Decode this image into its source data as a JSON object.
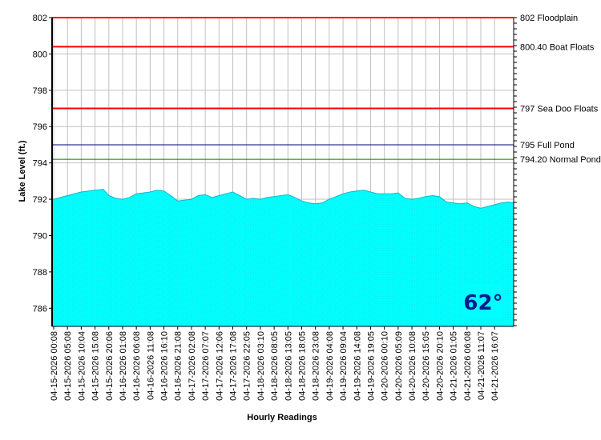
{
  "chart_data": {
    "type": "area",
    "xlabel": "Hourly Readings",
    "ylabel": "Lake Level (ft.)",
    "ylim": [
      785,
      802
    ],
    "yticks": [
      786,
      788,
      790,
      792,
      794,
      796,
      798,
      800,
      802
    ],
    "grid": true,
    "fill_color": "#00ffff",
    "x_tick_labels": [
      "04-15-2026 00:08",
      "04-15-2026 05:08",
      "04-15-2026 10:04",
      "04-15-2026 15:08",
      "04-15-2026 20:06",
      "04-16-2026 01:08",
      "04-16-2026 06:08",
      "04-16-2026 11:08",
      "04-16-2026 16:10",
      "04-16-2026 21:08",
      "04-17-2026 02:08",
      "04-17-2026 07:07",
      "04-17-2026 12:06",
      "04-17-2026 17:08",
      "04-17-2026 22:05",
      "04-18-2026 03:10",
      "04-18-2026 08:05",
      "04-18-2026 13:05",
      "04-18-2026 18:05",
      "04-18-2026 23:08",
      "04-19-2026 04:08",
      "04-19-2026 09:04",
      "04-19-2026 14:08",
      "04-19-2026 19:05",
      "04-20-2026 00:10",
      "04-20-2026 05:09",
      "04-20-2026 10:08",
      "04-20-2026 15:05",
      "04-20-2026 20:10",
      "04-21-2026 01:05",
      "04-21-2026 06:08",
      "04-21-2026 11:07",
      "04-21-2026 16:07"
    ],
    "level_points": [
      [
        0,
        792.0
      ],
      [
        1,
        792.2
      ],
      [
        2,
        792.4
      ],
      [
        3,
        792.5
      ],
      [
        3.6,
        792.55
      ],
      [
        4,
        792.2
      ],
      [
        4.5,
        792.05
      ],
      [
        5,
        792.0
      ],
      [
        5.5,
        792.1
      ],
      [
        6,
        792.3
      ],
      [
        6.5,
        792.35
      ],
      [
        7,
        792.4
      ],
      [
        7.5,
        792.5
      ],
      [
        8,
        792.45
      ],
      [
        8.5,
        792.2
      ],
      [
        9,
        791.9
      ],
      [
        9.5,
        791.95
      ],
      [
        10,
        792.0
      ],
      [
        10.5,
        792.2
      ],
      [
        11,
        792.25
      ],
      [
        11.5,
        792.1
      ],
      [
        12,
        792.2
      ],
      [
        12.5,
        792.3
      ],
      [
        13,
        792.4
      ],
      [
        13.5,
        792.2
      ],
      [
        14,
        792.0
      ],
      [
        14.5,
        792.05
      ],
      [
        15,
        792.0
      ],
      [
        15.5,
        792.1
      ],
      [
        16,
        792.15
      ],
      [
        16.5,
        792.2
      ],
      [
        17,
        792.25
      ],
      [
        17.5,
        792.1
      ],
      [
        18,
        791.9
      ],
      [
        18.5,
        791.8
      ],
      [
        19,
        791.75
      ],
      [
        19.5,
        791.8
      ],
      [
        20,
        792.0
      ],
      [
        20.5,
        792.15
      ],
      [
        21,
        792.3
      ],
      [
        21.5,
        792.4
      ],
      [
        22,
        792.45
      ],
      [
        22.5,
        792.5
      ],
      [
        23,
        792.4
      ],
      [
        23.5,
        792.3
      ],
      [
        24,
        792.3
      ],
      [
        24.5,
        792.3
      ],
      [
        25,
        792.35
      ],
      [
        25.5,
        792.05
      ],
      [
        26,
        792.0
      ],
      [
        26.5,
        792.05
      ],
      [
        27,
        792.15
      ],
      [
        27.5,
        792.2
      ],
      [
        28,
        792.15
      ],
      [
        28.5,
        791.85
      ],
      [
        29,
        791.8
      ],
      [
        29.5,
        791.75
      ],
      [
        30,
        791.8
      ],
      [
        30.5,
        791.6
      ],
      [
        31,
        791.5
      ],
      [
        31.5,
        791.6
      ],
      [
        32,
        791.7
      ],
      [
        32.5,
        791.8
      ],
      [
        33,
        791.85
      ],
      [
        33.5,
        791.8
      ]
    ],
    "reference_lines": [
      {
        "value": 802,
        "label": "802 Floodplain",
        "color": "#ff0000"
      },
      {
        "value": 800.4,
        "label": "800.40 Boat Floats",
        "color": "#ff0000"
      },
      {
        "value": 797,
        "label": "797 Sea Doo Floats",
        "color": "#ff0000"
      },
      {
        "value": 795,
        "label": "795 Full Pond",
        "color": "#000080"
      },
      {
        "value": 794.2,
        "label": "794.20 Normal Pond",
        "color": "#008000"
      }
    ],
    "badge": {
      "text": "62°",
      "background": "#00ffff",
      "color": "#0a1a8c"
    }
  }
}
